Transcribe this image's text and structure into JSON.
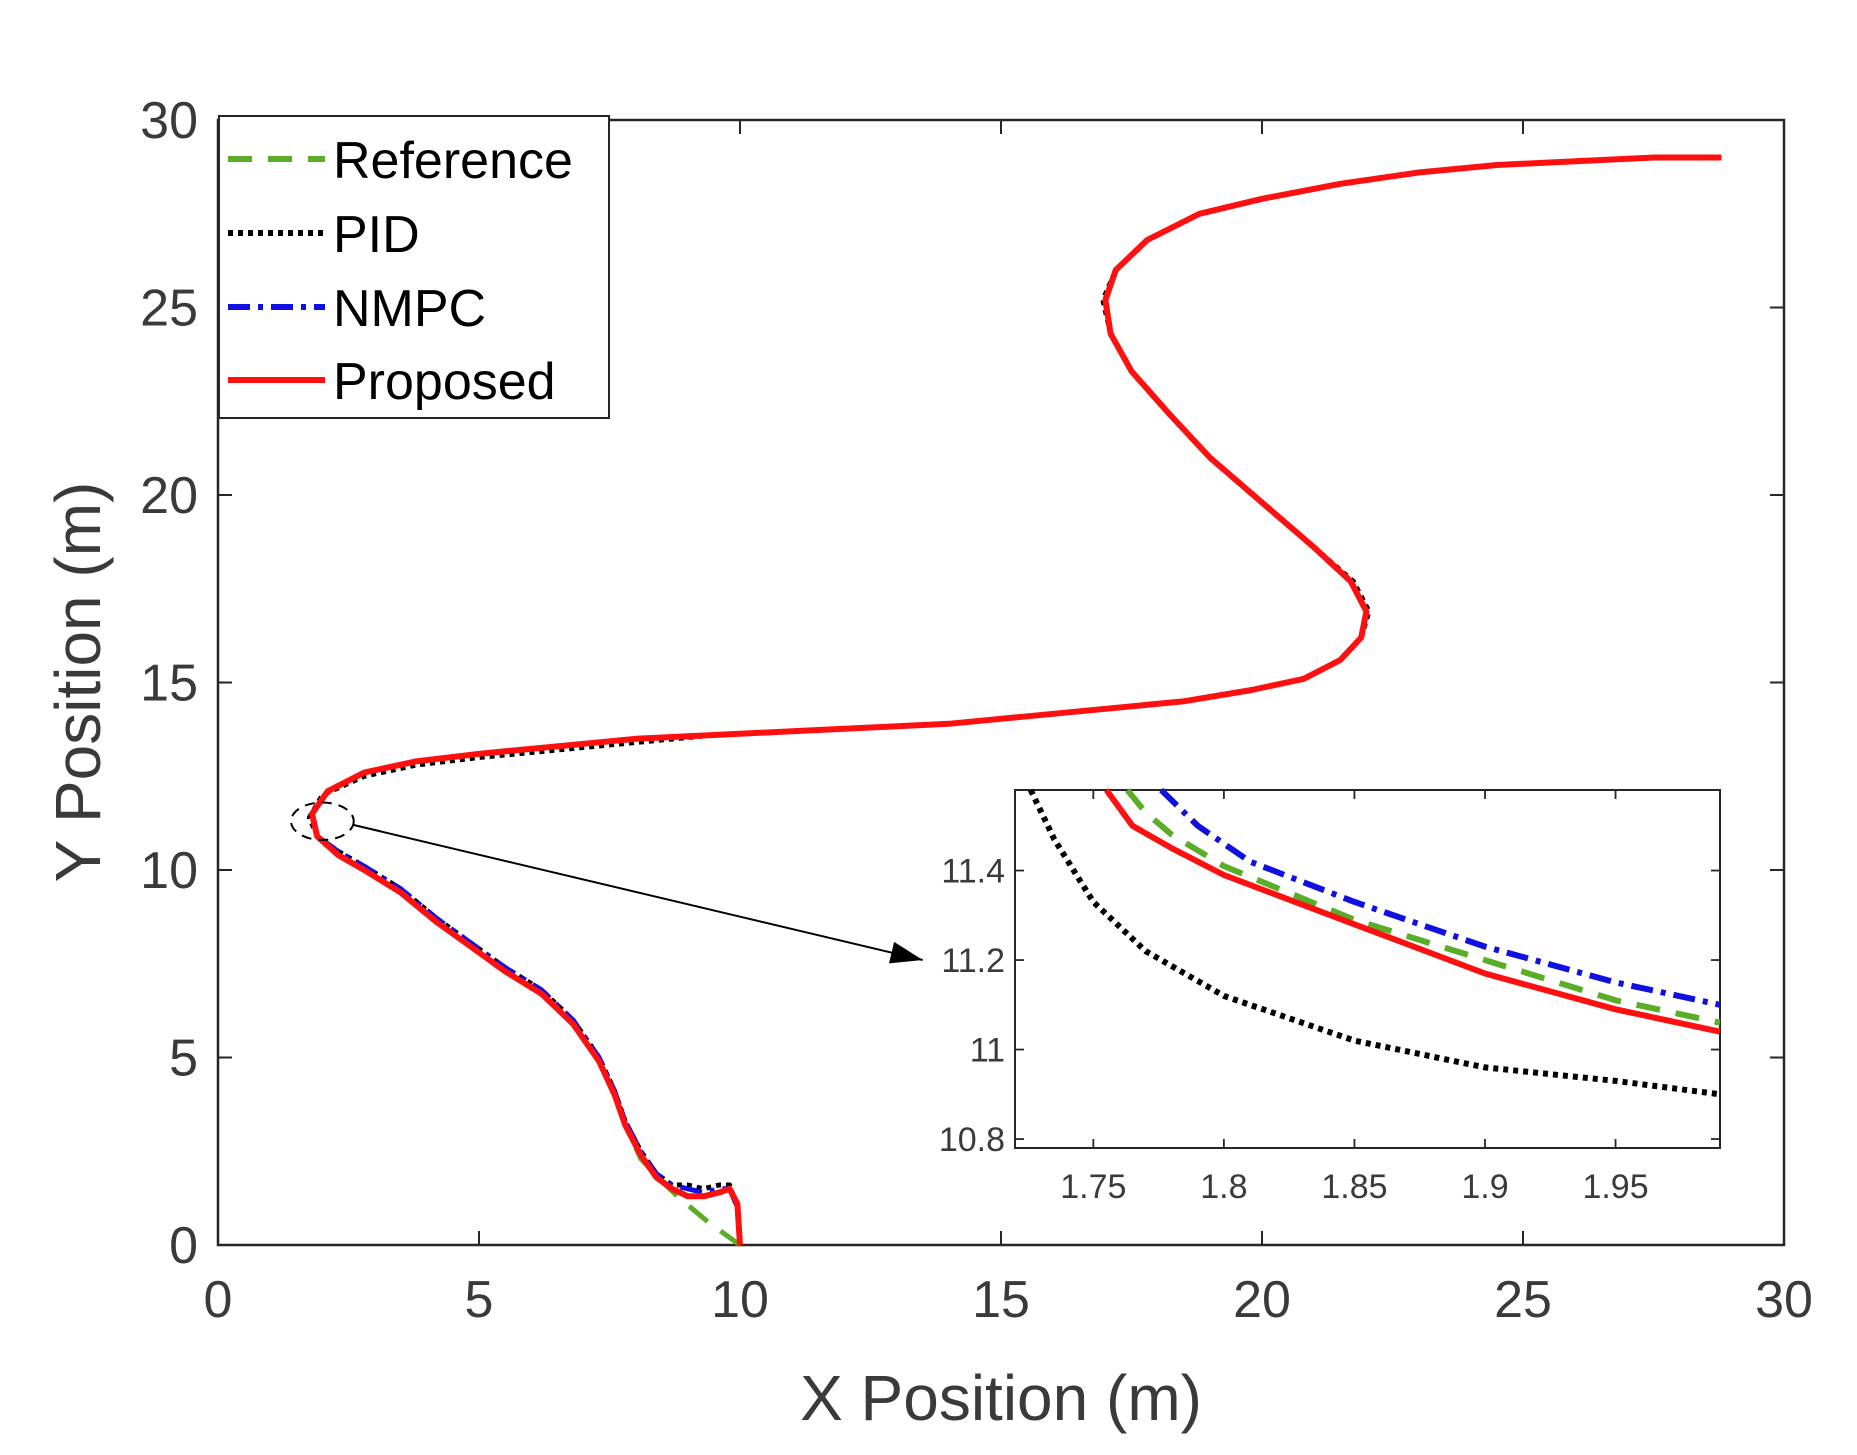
{
  "chart_data": [
    {
      "type": "line",
      "panel": "main",
      "xlabel": "X Position (m)",
      "ylabel": "Y Position (m)",
      "xlim": [
        0,
        30
      ],
      "ylim": [
        0,
        30
      ],
      "xticks": [
        0,
        5,
        10,
        15,
        20,
        25,
        30
      ],
      "yticks": [
        0,
        5,
        10,
        15,
        20,
        25,
        30
      ],
      "grid": false,
      "legend_position": "top-left",
      "colors": {
        "Reference": "#5aad26",
        "PID": "#000000",
        "NMPC": "#1010e0",
        "Proposed": "#ff1010"
      },
      "series": [
        {
          "name": "Reference",
          "style": "dashed",
          "x": [
            10.0,
            9.4,
            8.8,
            8.5,
            8.1,
            7.8,
            7.6,
            7.3,
            6.8,
            6.2,
            5.5,
            5.0,
            4.2,
            3.5,
            2.8,
            2.3,
            1.9,
            1.8,
            2.1,
            2.8,
            3.8,
            5.0,
            6.5,
            8.0,
            9.5,
            11.0,
            12.5,
            14.0,
            15.5,
            17.0,
            18.5,
            19.8,
            20.8,
            21.5,
            21.9,
            22.0,
            21.7,
            21.0,
            20.0,
            19.0,
            18.2,
            17.5,
            17.1,
            17.0,
            17.2,
            17.8,
            18.8,
            20.0,
            21.5,
            23.0,
            24.5,
            26.0,
            27.5,
            28.8
          ],
          "y": [
            0.0,
            0.6,
            1.3,
            1.7,
            2.3,
            3.2,
            4.0,
            4.9,
            5.9,
            6.7,
            7.3,
            7.8,
            8.6,
            9.4,
            10.0,
            10.4,
            10.9,
            11.5,
            12.1,
            12.6,
            12.9,
            13.1,
            13.3,
            13.5,
            13.6,
            13.7,
            13.8,
            13.9,
            14.1,
            14.3,
            14.5,
            14.8,
            15.1,
            15.6,
            16.2,
            16.9,
            17.7,
            18.6,
            19.8,
            21.0,
            22.2,
            23.3,
            24.3,
            25.2,
            26.0,
            26.8,
            27.5,
            27.9,
            28.3,
            28.6,
            28.8,
            28.9,
            29.0,
            29.0
          ]
        },
        {
          "name": "PID",
          "style": "dotted",
          "x": [
            10.0,
            9.95,
            9.8,
            9.6,
            9.3,
            9.0,
            8.7,
            8.4,
            8.1,
            7.8,
            7.6,
            7.3,
            6.8,
            6.2,
            5.5,
            5.0,
            4.2,
            3.5,
            2.8,
            2.3,
            1.9,
            1.75,
            2.0,
            2.8,
            3.8,
            5.0,
            6.5,
            8.0,
            9.5,
            11.0,
            12.5,
            14.0,
            15.5,
            17.0,
            18.5,
            19.8,
            20.8,
            21.5,
            21.9,
            22.05,
            21.75,
            21.0,
            20.0,
            19.0,
            18.2,
            17.5,
            17.1,
            16.95,
            17.2,
            17.8,
            18.8,
            20.0,
            21.5,
            23.0,
            24.5,
            26.0,
            27.5,
            28.8
          ],
          "y": [
            0.0,
            1.0,
            1.6,
            1.6,
            1.5,
            1.6,
            1.6,
            1.9,
            2.5,
            3.3,
            4.1,
            5.0,
            6.0,
            6.8,
            7.4,
            7.9,
            8.7,
            9.5,
            10.1,
            10.5,
            10.9,
            11.4,
            12.0,
            12.5,
            12.8,
            13.0,
            13.2,
            13.4,
            13.6,
            13.7,
            13.8,
            13.9,
            14.1,
            14.3,
            14.5,
            14.8,
            15.1,
            15.6,
            16.2,
            16.9,
            17.7,
            18.6,
            19.8,
            21.0,
            22.2,
            23.3,
            24.3,
            25.2,
            26.0,
            26.8,
            27.5,
            27.9,
            28.3,
            28.6,
            28.8,
            28.9,
            29.0,
            29.0
          ]
        },
        {
          "name": "NMPC",
          "style": "dash-dot",
          "x": [
            10.0,
            9.95,
            9.8,
            9.6,
            9.3,
            9.0,
            8.7,
            8.4,
            8.1,
            7.8,
            7.6,
            7.3,
            6.8,
            6.2,
            5.5,
            5.0,
            4.2,
            3.5,
            2.8,
            2.3,
            1.9,
            1.8,
            2.1,
            2.8,
            3.8,
            5.0,
            6.5,
            8.0,
            9.5,
            11.0,
            12.5,
            14.0,
            15.5,
            17.0,
            18.5,
            19.8,
            20.8,
            21.5,
            21.9,
            22.0,
            21.7,
            21.0,
            20.0,
            19.0,
            18.2,
            17.5,
            17.1,
            17.0,
            17.2,
            17.8,
            18.8,
            20.0,
            21.5,
            23.0,
            24.5,
            26.0,
            27.5,
            28.8
          ],
          "y": [
            0.0,
            1.0,
            1.5,
            1.5,
            1.4,
            1.5,
            1.6,
            1.9,
            2.5,
            3.3,
            4.1,
            5.0,
            6.0,
            6.8,
            7.4,
            7.9,
            8.7,
            9.5,
            10.1,
            10.5,
            10.9,
            11.5,
            12.1,
            12.6,
            12.9,
            13.1,
            13.3,
            13.5,
            13.6,
            13.7,
            13.8,
            13.9,
            14.1,
            14.3,
            14.5,
            14.8,
            15.1,
            15.6,
            16.2,
            16.9,
            17.7,
            18.6,
            19.8,
            21.0,
            22.2,
            23.3,
            24.3,
            25.2,
            26.0,
            26.8,
            27.5,
            27.9,
            28.3,
            28.6,
            28.8,
            28.9,
            29.0,
            29.0
          ]
        },
        {
          "name": "Proposed",
          "style": "solid",
          "x": [
            10.0,
            9.95,
            9.8,
            9.6,
            9.3,
            9.0,
            8.7,
            8.4,
            8.1,
            7.8,
            7.6,
            7.3,
            6.8,
            6.2,
            5.5,
            5.0,
            4.2,
            3.5,
            2.8,
            2.3,
            1.9,
            1.8,
            2.1,
            2.8,
            3.8,
            5.0,
            6.5,
            8.0,
            9.5,
            11.0,
            12.5,
            14.0,
            15.5,
            17.0,
            18.5,
            19.8,
            20.8,
            21.5,
            21.9,
            22.0,
            21.7,
            21.0,
            20.0,
            19.0,
            18.2,
            17.5,
            17.1,
            17.0,
            17.2,
            17.8,
            18.8,
            20.0,
            21.5,
            23.0,
            24.5,
            26.0,
            27.5,
            28.8
          ],
          "y": [
            0.0,
            1.1,
            1.5,
            1.4,
            1.3,
            1.3,
            1.5,
            1.8,
            2.4,
            3.2,
            4.0,
            4.9,
            5.9,
            6.7,
            7.3,
            7.8,
            8.6,
            9.4,
            10.0,
            10.4,
            10.9,
            11.5,
            12.1,
            12.6,
            12.9,
            13.1,
            13.3,
            13.5,
            13.6,
            13.7,
            13.8,
            13.9,
            14.1,
            14.3,
            14.5,
            14.8,
            15.1,
            15.6,
            16.2,
            16.9,
            17.7,
            18.6,
            19.8,
            21.0,
            22.2,
            23.3,
            24.3,
            25.2,
            26.0,
            26.8,
            27.5,
            27.9,
            28.3,
            28.6,
            28.8,
            28.9,
            29.0,
            29.0
          ]
        }
      ],
      "annotations": [
        {
          "type": "ellipse",
          "center": [
            2.0,
            11.3
          ],
          "radii": [
            0.6,
            0.5
          ],
          "note": "zoom region"
        },
        {
          "type": "arrow",
          "from": [
            2.6,
            11.2
          ],
          "to": [
            13.5,
            7.6
          ],
          "note": "points to inset"
        }
      ]
    },
    {
      "type": "line",
      "panel": "inset",
      "xlim": [
        1.72,
        1.99
      ],
      "ylim": [
        10.78,
        11.58
      ],
      "xticks": [
        1.75,
        1.8,
        1.85,
        1.9,
        1.95
      ],
      "xtick_labels": [
        "1.75",
        "1.8",
        "1.85",
        "1.9",
        "1.95"
      ],
      "yticks": [
        10.8,
        11.0,
        11.2,
        11.4
      ],
      "ytick_labels": [
        "10.8",
        "11",
        "11.2",
        "11.4"
      ],
      "series": [
        {
          "name": "Reference",
          "x": [
            1.763,
            1.77,
            1.78,
            1.8,
            1.85,
            1.9,
            1.95,
            1.99
          ],
          "y": [
            11.58,
            11.53,
            11.48,
            11.41,
            11.29,
            11.2,
            11.11,
            11.06
          ]
        },
        {
          "name": "PID",
          "x": [
            1.726,
            1.735,
            1.75,
            1.77,
            1.8,
            1.85,
            1.9,
            1.95,
            1.99
          ],
          "y": [
            11.58,
            11.47,
            11.33,
            11.22,
            11.12,
            11.02,
            10.96,
            10.93,
            10.9
          ]
        },
        {
          "name": "NMPC",
          "x": [
            1.776,
            1.79,
            1.81,
            1.85,
            1.9,
            1.95,
            1.99
          ],
          "y": [
            11.58,
            11.5,
            11.42,
            11.33,
            11.23,
            11.15,
            11.1
          ]
        },
        {
          "name": "Proposed",
          "x": [
            1.755,
            1.765,
            1.78,
            1.8,
            1.85,
            1.9,
            1.95,
            1.99
          ],
          "y": [
            11.58,
            11.5,
            11.45,
            11.39,
            11.28,
            11.17,
            11.09,
            11.04
          ]
        }
      ]
    }
  ]
}
